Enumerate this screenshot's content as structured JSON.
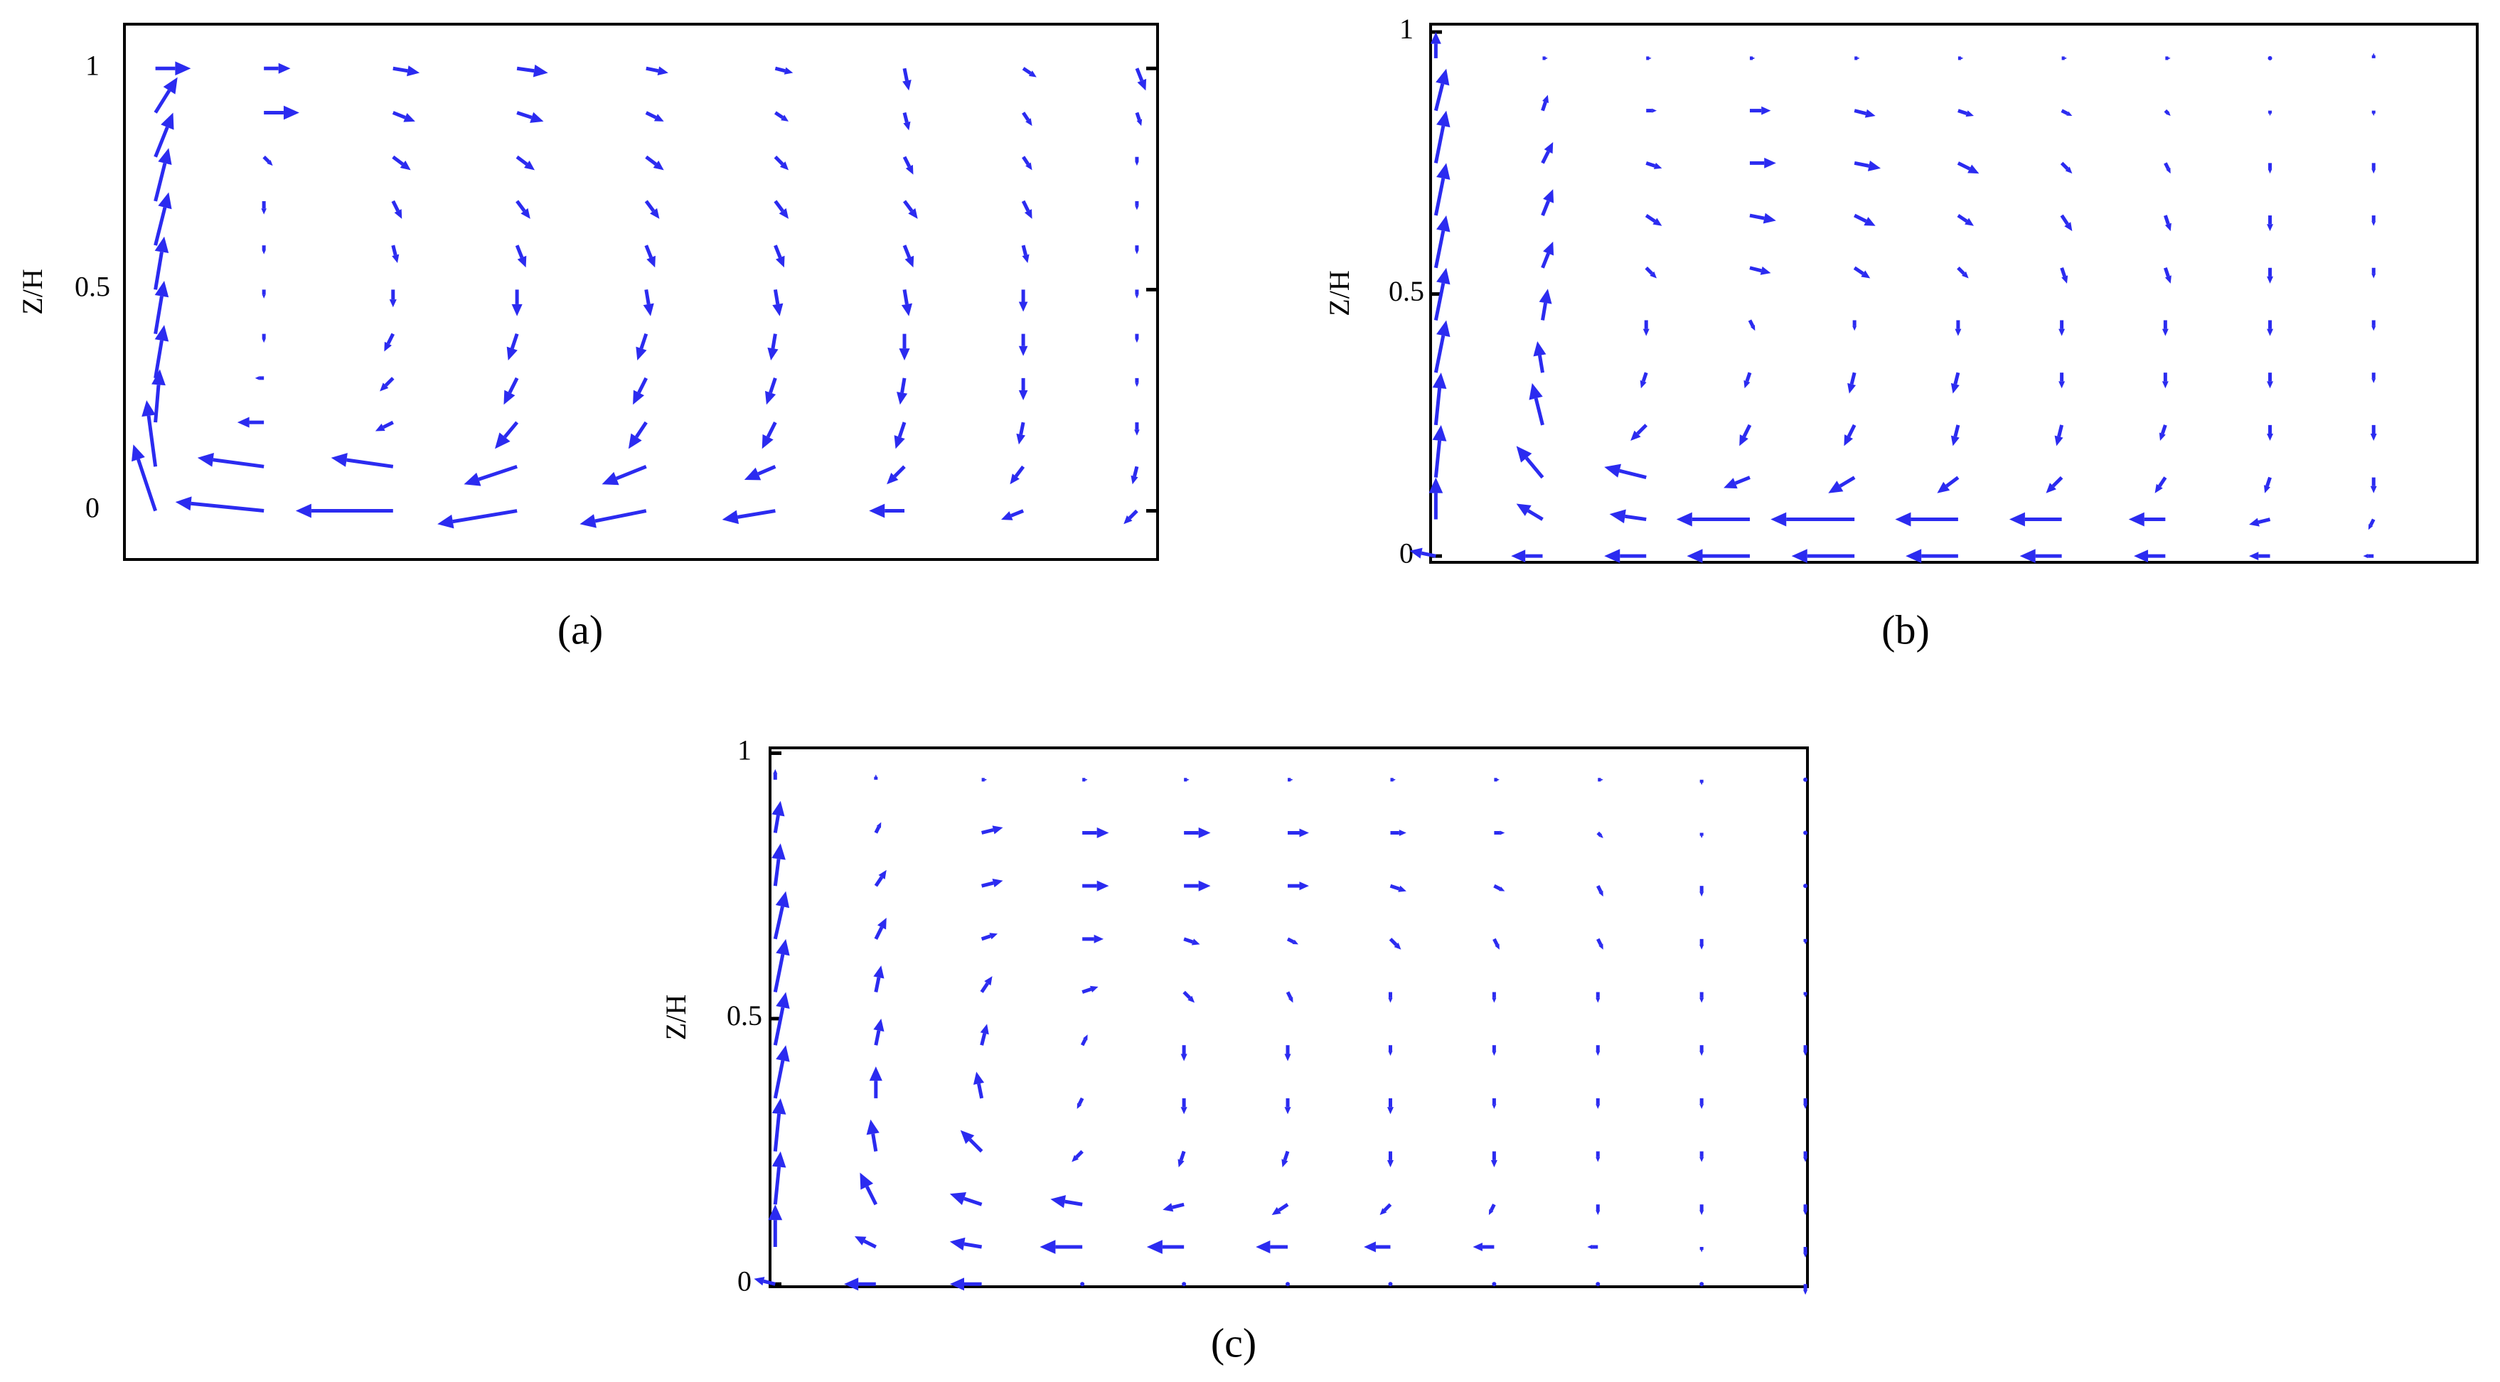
{
  "chart_data": [
    {
      "type": "quiver",
      "caption": "(a)",
      "ylabel": "Z/H",
      "color": "#2b2bf0",
      "tick_side": "right",
      "ylim": [
        -0.11,
        1.1
      ],
      "yticks": [
        0,
        0.5,
        1
      ],
      "xlim": [
        0,
        1
      ],
      "x": [
        0.03,
        0.135,
        0.26,
        0.38,
        0.505,
        0.63,
        0.755,
        0.87,
        0.98
      ],
      "z": [
        0,
        0.1,
        0.2,
        0.3,
        0.4,
        0.5,
        0.6,
        0.7,
        0.8,
        0.9,
        1.0
      ],
      "u": [
        [
          -0.05,
          -0.2,
          -0.22,
          -0.18,
          -0.15,
          -0.12,
          -0.08,
          -0.05,
          -0.03
        ],
        [
          -0.02,
          -0.15,
          -0.14,
          -0.12,
          -0.1,
          -0.07,
          -0.04,
          -0.03,
          -0.01
        ],
        [
          0.01,
          -0.06,
          -0.04,
          -0.05,
          -0.04,
          -0.03,
          -0.02,
          -0.01,
          0
        ],
        [
          0.02,
          -0.02,
          -0.03,
          -0.03,
          -0.03,
          -0.02,
          -0.01,
          0,
          0
        ],
        [
          0.02,
          0,
          -0.02,
          -0.02,
          -0.02,
          -0.01,
          0,
          0,
          0
        ],
        [
          0.02,
          0,
          0,
          0,
          0.01,
          0.01,
          0.01,
          0,
          0
        ],
        [
          0.03,
          0,
          0.01,
          0.02,
          0.02,
          0.02,
          0.02,
          0.01,
          0
        ],
        [
          0.03,
          0,
          0.02,
          0.03,
          0.03,
          0.03,
          0.03,
          0.02,
          0
        ],
        [
          0.04,
          0.02,
          0.04,
          0.04,
          0.04,
          0.03,
          0.02,
          0.02,
          0
        ],
        [
          0.05,
          0.08,
          0.05,
          0.06,
          0.04,
          0.03,
          0.01,
          0.02,
          0.01
        ],
        [
          0.08,
          0.06,
          0.06,
          0.07,
          0.05,
          0.04,
          0.01,
          0.03,
          0.02
        ]
      ],
      "w": [
        [
          0.15,
          0.02,
          0,
          -0.03,
          -0.03,
          -0.02,
          0,
          -0.02,
          -0.03
        ],
        [
          0.15,
          0.02,
          0.02,
          -0.04,
          -0.04,
          -0.03,
          -0.04,
          -0.04,
          -0.04
        ],
        [
          0.12,
          0,
          -0.02,
          -0.06,
          -0.06,
          -0.06,
          -0.06,
          -0.05,
          -0.03
        ],
        [
          0.12,
          0,
          -0.03,
          -0.06,
          -0.06,
          -0.06,
          -0.06,
          -0.05,
          -0.02
        ],
        [
          0.12,
          -0.02,
          -0.04,
          -0.06,
          -0.06,
          -0.06,
          -0.06,
          -0.05,
          -0.02
        ],
        [
          0.12,
          -0.02,
          -0.04,
          -0.06,
          -0.06,
          -0.06,
          -0.06,
          -0.05,
          -0.02
        ],
        [
          0.12,
          -0.02,
          -0.04,
          -0.05,
          -0.05,
          -0.05,
          -0.05,
          -0.04,
          -0.02
        ],
        [
          0.12,
          -0.03,
          -0.04,
          -0.04,
          -0.04,
          -0.04,
          -0.04,
          -0.04,
          -0.02
        ],
        [
          0.1,
          -0.02,
          -0.03,
          -0.03,
          -0.03,
          -0.03,
          -0.04,
          -0.03,
          -0.02
        ],
        [
          0.08,
          0,
          -0.02,
          -0.02,
          -0.02,
          -0.02,
          -0.04,
          -0.03,
          -0.03
        ],
        [
          0,
          0,
          -0.01,
          -0.01,
          -0.01,
          -0.01,
          -0.05,
          -0.02,
          -0.05
        ]
      ]
    },
    {
      "type": "quiver",
      "caption": "(b)",
      "ylabel": "Z/H",
      "color": "#2b2bf0",
      "tick_side": "left",
      "ylim": [
        -0.012,
        1.015
      ],
      "yticks": [
        0,
        0.5,
        1
      ],
      "xlim": [
        0,
        1
      ],
      "x": [
        0.005,
        0.107,
        0.206,
        0.305,
        0.405,
        0.504,
        0.603,
        0.702,
        0.802,
        0.901
      ],
      "z": [
        0,
        0.07,
        0.15,
        0.25,
        0.35,
        0.45,
        0.55,
        0.65,
        0.75,
        0.85,
        0.95
      ],
      "u": [
        [
          -0.05,
          -0.06,
          -0.08,
          -0.12,
          -0.12,
          -0.1,
          -0.08,
          -0.06,
          -0.04,
          -0.02
        ],
        [
          0,
          -0.05,
          -0.07,
          -0.14,
          -0.16,
          -0.12,
          -0.1,
          -0.07,
          -0.04,
          -0.01
        ],
        [
          0.01,
          -0.05,
          -0.08,
          -0.05,
          -0.05,
          -0.04,
          -0.03,
          -0.02,
          -0.01,
          0
        ],
        [
          0.01,
          -0.02,
          -0.03,
          -0.02,
          -0.02,
          -0.01,
          -0.01,
          -0.01,
          0,
          0
        ],
        [
          0.02,
          -0.01,
          -0.01,
          -0.01,
          -0.01,
          -0.01,
          0,
          0,
          0,
          0
        ],
        [
          0.02,
          0.01,
          0,
          0.01,
          0,
          0,
          0,
          0,
          0,
          0
        ],
        [
          0.02,
          0.02,
          0.02,
          0.04,
          0.03,
          0.02,
          0.01,
          0.01,
          0,
          0
        ],
        [
          0.02,
          0.02,
          0.03,
          0.05,
          0.04,
          0.03,
          0.02,
          0.01,
          0,
          0
        ],
        [
          0.02,
          0.02,
          0.03,
          0.05,
          0.05,
          0.04,
          0.02,
          0.01,
          0,
          0
        ],
        [
          0.02,
          0.01,
          0.02,
          0.04,
          0.04,
          0.03,
          0.02,
          0.01,
          0,
          0
        ],
        [
          0,
          0.01,
          0.01,
          0.01,
          0.01,
          0.01,
          0.01,
          0.01,
          0,
          0
        ]
      ],
      "w": [
        [
          0.01,
          0,
          0,
          0,
          0,
          0,
          0,
          0,
          0,
          0
        ],
        [
          0.08,
          0.03,
          0.01,
          0,
          0,
          0,
          0,
          0,
          -0.01,
          -0.02
        ],
        [
          0.1,
          0.06,
          0.02,
          -0.02,
          -0.03,
          -0.03,
          -0.03,
          -0.03,
          -0.03,
          -0.03
        ],
        [
          0.1,
          0.08,
          -0.03,
          -0.04,
          -0.04,
          -0.04,
          -0.04,
          -0.03,
          -0.03,
          -0.03
        ],
        [
          0.1,
          0.06,
          -0.03,
          -0.03,
          -0.04,
          -0.04,
          -0.03,
          -0.03,
          -0.03,
          -0.02
        ],
        [
          0.1,
          0.06,
          -0.03,
          -0.02,
          -0.02,
          -0.03,
          -0.03,
          -0.03,
          -0.03,
          -0.02
        ],
        [
          0.1,
          0.05,
          -0.02,
          -0.01,
          -0.02,
          -0.02,
          -0.03,
          -0.03,
          -0.03,
          -0.02
        ],
        [
          0.1,
          0.05,
          -0.02,
          -0.01,
          -0.02,
          -0.02,
          -0.03,
          -0.03,
          -0.03,
          -0.02
        ],
        [
          0.1,
          0.04,
          -0.01,
          0,
          -0.01,
          -0.02,
          -0.02,
          -0.02,
          -0.02,
          -0.02
        ],
        [
          0.08,
          0.03,
          0,
          0,
          -0.01,
          -0.01,
          -0.01,
          -0.01,
          -0.01,
          -0.01
        ],
        [
          0.05,
          0,
          0,
          0,
          0,
          0,
          0,
          0,
          0,
          0.01
        ]
      ]
    },
    {
      "type": "quiver",
      "caption": "(c)",
      "ylabel": "Z/H",
      "color": "#2b2bf0",
      "tick_side": "left",
      "ylim": [
        -0.005,
        1.01
      ],
      "yticks": [
        0,
        0.5,
        1
      ],
      "xlim": [
        0,
        1
      ],
      "x": [
        0.005,
        0.102,
        0.204,
        0.301,
        0.399,
        0.499,
        0.598,
        0.698,
        0.798,
        0.898,
        0.998
      ],
      "z": [
        0,
        0.07,
        0.15,
        0.25,
        0.35,
        0.45,
        0.55,
        0.65,
        0.75,
        0.85,
        0.95
      ],
      "u": [
        [
          -0.04,
          -0.06,
          -0.06,
          0,
          0,
          0,
          0,
          0,
          0,
          0,
          0
        ],
        [
          0,
          -0.04,
          -0.06,
          -0.08,
          -0.07,
          -0.06,
          -0.05,
          -0.04,
          -0.02,
          0,
          0
        ],
        [
          0.01,
          -0.03,
          -0.06,
          -0.06,
          -0.04,
          -0.03,
          -0.02,
          -0.01,
          0,
          0,
          0
        ],
        [
          0.01,
          -0.01,
          -0.04,
          -0.02,
          -0.01,
          -0.01,
          0,
          0,
          0,
          0,
          0
        ],
        [
          0.02,
          0,
          -0.01,
          -0.01,
          0,
          0,
          0,
          0,
          0,
          0,
          0
        ],
        [
          0.02,
          0.01,
          0.01,
          0.01,
          0,
          0,
          0,
          0,
          0,
          0,
          0
        ],
        [
          0.02,
          0.01,
          0.02,
          0.03,
          0.02,
          0.01,
          0,
          0,
          0,
          0,
          0
        ],
        [
          0.02,
          0.02,
          0.03,
          0.04,
          0.03,
          0.02,
          0.02,
          0.01,
          0.01,
          0,
          0
        ],
        [
          0.01,
          0.02,
          0.04,
          0.05,
          0.05,
          0.04,
          0.03,
          0.02,
          0.01,
          0,
          0
        ],
        [
          0.01,
          0.01,
          0.04,
          0.05,
          0.05,
          0.04,
          0.03,
          0.02,
          0.01,
          0,
          0
        ],
        [
          0,
          0,
          0.01,
          0.01,
          0.01,
          0.01,
          0.01,
          0.01,
          0.01,
          0,
          0
        ]
      ],
      "w": [
        [
          0.01,
          0,
          0,
          0,
          0,
          0,
          0,
          0,
          0,
          0,
          -0.02
        ],
        [
          0.08,
          0.02,
          0.01,
          0,
          0,
          0,
          0,
          0,
          0,
          -0.01,
          -0.02
        ],
        [
          0.1,
          0.06,
          0.02,
          0.01,
          -0.01,
          -0.02,
          -0.02,
          -0.02,
          -0.02,
          -0.02,
          -0.02
        ],
        [
          0.1,
          0.06,
          0.04,
          -0.02,
          -0.03,
          -0.03,
          -0.03,
          -0.03,
          -0.02,
          -0.02,
          -0.02
        ],
        [
          0.1,
          0.06,
          0.05,
          -0.02,
          -0.03,
          -0.03,
          -0.03,
          -0.02,
          -0.02,
          -0.02,
          -0.02
        ],
        [
          0.1,
          0.05,
          0.04,
          0.02,
          -0.03,
          -0.03,
          -0.02,
          -0.02,
          -0.02,
          -0.02,
          -0.02
        ],
        [
          0.1,
          0.05,
          0.03,
          0.01,
          -0.02,
          -0.02,
          -0.02,
          -0.02,
          -0.02,
          -0.02,
          -0.01
        ],
        [
          0.09,
          0.04,
          0.01,
          0,
          -0.01,
          -0.01,
          -0.02,
          -0.02,
          -0.02,
          -0.02,
          -0.01
        ],
        [
          0.08,
          0.03,
          0.01,
          0,
          0,
          0,
          -0.01,
          -0.01,
          -0.02,
          -0.02,
          0
        ],
        [
          0.06,
          0.02,
          0.01,
          0,
          0,
          0,
          0,
          0,
          -0.01,
          -0.01,
          0
        ],
        [
          0.02,
          0.01,
          0,
          0,
          0,
          0,
          0,
          0,
          0,
          -0.01,
          0
        ]
      ]
    }
  ]
}
